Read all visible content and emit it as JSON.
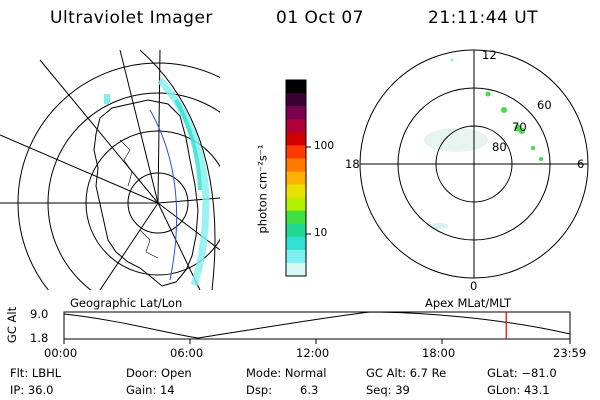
{
  "header": {
    "title": "Ultraviolet Imager",
    "date": "01 Oct 07",
    "time": "21:11:44 UT"
  },
  "geo_panel": {
    "label": "Geographic Lat/Lon"
  },
  "colorbar": {
    "unit_label": "photon cm⁻²s⁻¹",
    "ticks": [
      "100",
      "10"
    ],
    "colors": [
      "#000000",
      "#3a0033",
      "#7a0050",
      "#b0003a",
      "#d40000",
      "#ff3a00",
      "#ff7a00",
      "#ffb000",
      "#e8e000",
      "#b0f000",
      "#40e040",
      "#20d890",
      "#30e0d0",
      "#7ff0f0",
      "#d8f8f8"
    ]
  },
  "polar_panel": {
    "label": "Apex MLat/MLT",
    "mlt_labels": {
      "top": "12",
      "left": "18",
      "right": "6",
      "bottom": "0"
    },
    "lat_labels": [
      "60",
      "70",
      "80"
    ]
  },
  "altitude_plot": {
    "ylabel": "GC Alt",
    "yticks": [
      "9.0",
      "1.8"
    ],
    "xticks": [
      "00:00",
      "06:00",
      "12:00",
      "18:00",
      "23:59"
    ],
    "current_time_fraction": 0.874,
    "marker_color": "#e00000"
  },
  "status": {
    "filter": "Flt: LBHL",
    "ip": "IP: 36.0",
    "door": "Door: Open",
    "gain": "Gain: 14",
    "mode": "Mode: Normal",
    "dsp_label": "Dsp:",
    "dsp_value": "6.3",
    "gc_alt": "GC Alt: 6.7 Re",
    "seq": "Seq: 39",
    "glat": "GLat: −81.0",
    "glon": "GLon:  43.1"
  }
}
